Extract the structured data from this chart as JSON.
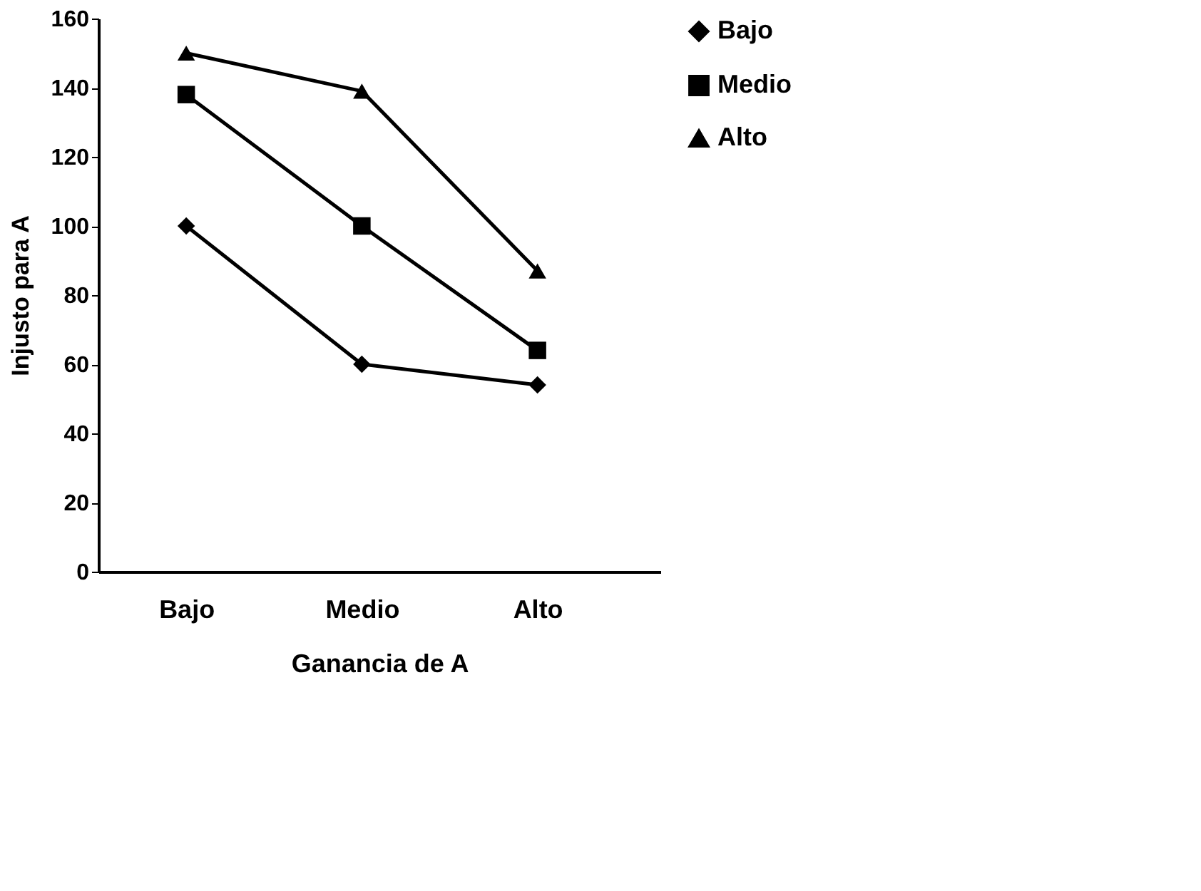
{
  "chart_data": {
    "type": "line",
    "xlabel": "Ganancia de A",
    "ylabel": "Injusto para A",
    "categories": [
      "Bajo",
      "Medio",
      "Alto"
    ],
    "series": [
      {
        "name": "Bajo",
        "color": "#000000",
        "marker": "diamond",
        "values": [
          100,
          60,
          54
        ]
      },
      {
        "name": "Medio",
        "color": "#000000",
        "marker": "square",
        "values": [
          138,
          100,
          64
        ]
      },
      {
        "name": "Alto",
        "color": "#000000",
        "marker": "triangle",
        "values": [
          150,
          139,
          87
        ]
      }
    ],
    "ylim": [
      0,
      160
    ],
    "yticks": [
      0,
      20,
      40,
      60,
      80,
      100,
      120,
      140,
      160
    ],
    "grid": false,
    "legend": "right",
    "line_style": "solid"
  }
}
